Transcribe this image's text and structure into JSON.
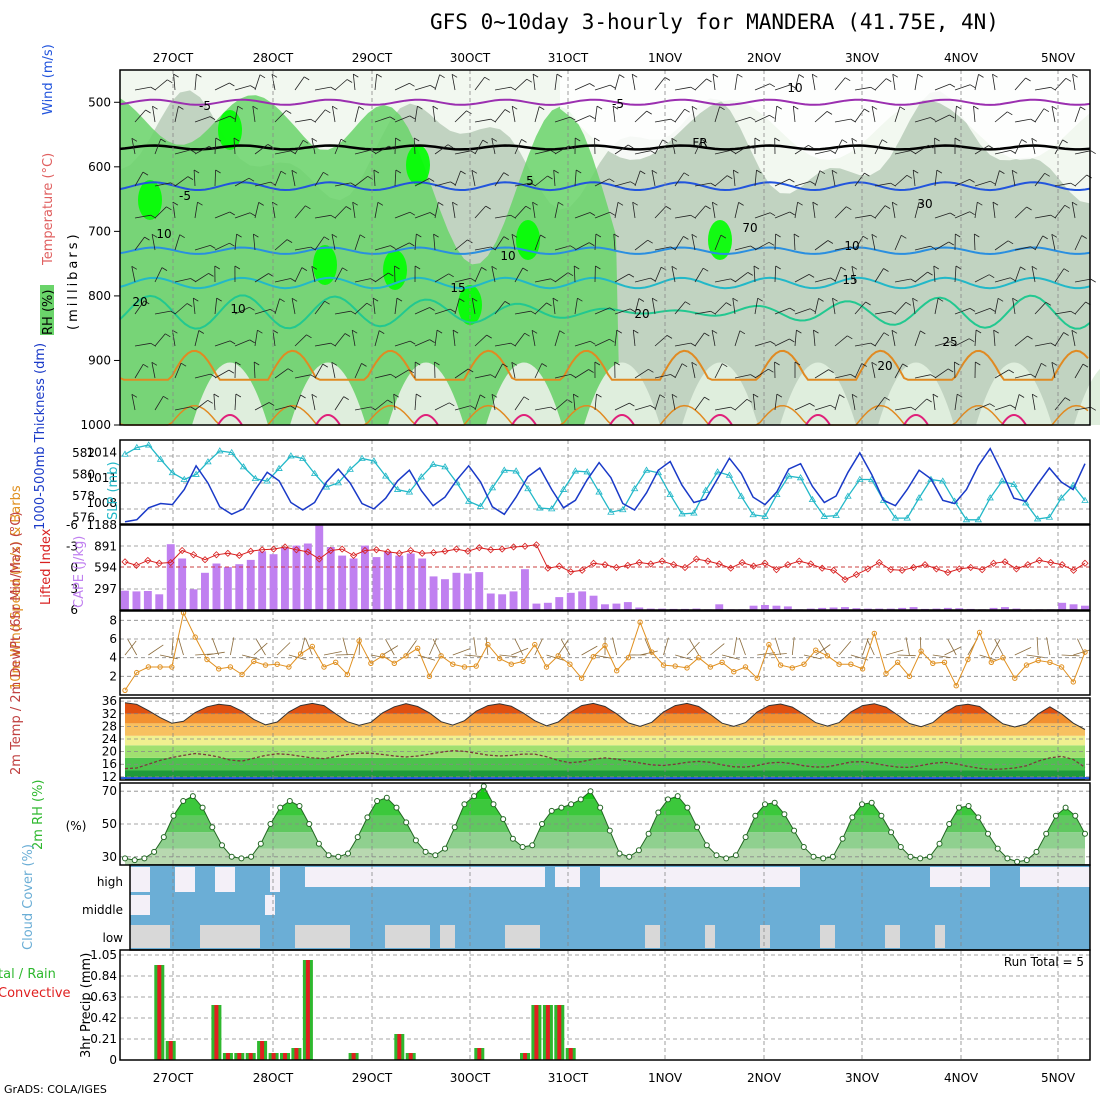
{
  "title": "GFS 0~10day 3-hourly for MANDERA (41.75E, 4N)",
  "credit": "GrADS: COLA/IGES",
  "colors": {
    "rh_light": "#dfeedd",
    "rh_mid": "#b8cdb8",
    "rh_green": "#6ad46a",
    "rh_bright": "#00ff00",
    "temp_purple": "#9b2fb0",
    "temp_blue": "#2255dd",
    "temp_lblue": "#2a8fe0",
    "temp_cyan": "#22b8c8",
    "temp_teal": "#22c890",
    "temp_orange": "#e08a22",
    "temp_magenta": "#e0207a",
    "slp": "#22b8c8",
    "thick": "#1a3ac8",
    "cape": "#c080f0",
    "li": "#d82020",
    "wind10": "#e09020",
    "barb": "#8a6a3a",
    "cloud": "#6baed6",
    "cloud_bg": "#f4f0f8",
    "precip_total": "#2eb82e",
    "precip_conv": "#e02020"
  },
  "chart_data": [
    {
      "panel": "upper_air",
      "type": "heatmap",
      "x_dates": [
        "27OCT",
        "28OCT",
        "29OCT",
        "30OCT",
        "31OCT",
        "1NOV",
        "2NOV",
        "3NOV",
        "4NOV",
        "5NOV"
      ],
      "ylabel_rh": "RH (%)",
      "ylabel_temp": "Temperature (°C)",
      "ylabel_wind": "Wind (m/s)",
      "ylabel_p": "(millibars)",
      "p_ticks": [
        500,
        600,
        700,
        800,
        900,
        1000
      ],
      "ylim": [
        450,
        1000
      ],
      "contour_labels": [
        "-5",
        "-5",
        "FR",
        "-5",
        "5",
        "10",
        "10",
        "15",
        "20",
        "20",
        "15",
        "10",
        "20",
        "25",
        "30",
        "10",
        "70",
        "10"
      ]
    },
    {
      "panel": "slp_thickness",
      "type": "line",
      "ylabel_left": "1000-500mb Thickness (dm)",
      "ylabel_right": "SLP (mb)",
      "left_ticks": [
        "576",
        "578",
        "580",
        "582"
      ],
      "right_ticks": [
        "1008",
        "1011",
        "1014"
      ],
      "left_lim": [
        575.4,
        583.2
      ],
      "right_lim": [
        1005.5,
        1015.5
      ],
      "series": [
        {
          "name": "SLP",
          "values": [
            1013.8,
            1014.6,
            1014.9,
            1013.2,
            1011.6,
            1010.8,
            1011.4,
            1012.9,
            1014.2,
            1014.0,
            1012.3,
            1010.9,
            1010.6,
            1012.1,
            1013.6,
            1013.3,
            1011.5,
            1009.9,
            1010.4,
            1012.0,
            1013.3,
            1013.0,
            1011.2,
            1009.6,
            1009.3,
            1011.1,
            1012.6,
            1012.3,
            1010.4,
            1008.2,
            1007.6,
            1009.8,
            1011.9,
            1011.8,
            1009.7,
            1007.4,
            1007.3,
            1009.6,
            1011.8,
            1011.7,
            1009.3,
            1006.9,
            1007.2,
            1009.7,
            1011.9,
            1011.6,
            1009.0,
            1006.7,
            1006.8,
            1009.5,
            1011.7,
            1011.3,
            1008.8,
            1006.6,
            1006.4,
            1009.0,
            1011.2,
            1011.0,
            1008.4,
            1006.4,
            1006.5,
            1008.8,
            1010.8,
            1010.8,
            1008.3,
            1006.2,
            1006.2,
            1008.6,
            1010.8,
            1010.6,
            1008.2,
            1006.0,
            1006.0,
            1008.6,
            1010.6,
            1010.2,
            1008.0,
            1006.1,
            1006.3,
            1008.6,
            1010.1,
            1008.3
          ]
        },
        {
          "name": "Thickness",
          "values": [
            575.6,
            575.8,
            576.9,
            577.3,
            577.2,
            578.6,
            580.8,
            579.2,
            577.0,
            576.3,
            576.8,
            578.6,
            580.2,
            579.4,
            577.4,
            576.7,
            577.4,
            579.3,
            580.5,
            579.2,
            577.3,
            576.8,
            577.8,
            579.4,
            580.4,
            578.5,
            577.1,
            577.9,
            579.5,
            580.8,
            579.3,
            577.0,
            576.3,
            577.9,
            579.8,
            580.6,
            578.6,
            576.9,
            577.6,
            579.5,
            581.1,
            579.7,
            577.3,
            576.7,
            578.3,
            580.4,
            581.2,
            579.0,
            577.4,
            577.7,
            579.6,
            581.5,
            580.1,
            577.9,
            577.2,
            578.4,
            580.5,
            581.0,
            578.9,
            577.4,
            578.0,
            580.2,
            582.0,
            580.0,
            577.6,
            577.1,
            578.6,
            580.4,
            579.6,
            577.6,
            577.3,
            578.6,
            580.8,
            582.4,
            580.2,
            577.8,
            577.5,
            579.1,
            580.6,
            579.3,
            578.6,
            581.0
          ]
        }
      ]
    },
    {
      "panel": "cape_li",
      "type": "bar",
      "ylabel_left": "Lifted Index",
      "ylabel_right": "CAPE (J/kg)",
      "left_ticks": [
        "-6",
        "-3",
        "0",
        "3",
        "6"
      ],
      "right_ticks": [
        "297",
        "594",
        "891",
        "1188"
      ],
      "cape_lim": [
        0,
        1188
      ],
      "li_lim": [
        6,
        -6
      ],
      "cape_values": [
        270,
        260,
        265,
        220,
        920,
        720,
        290,
        520,
        650,
        600,
        640,
        700,
        820,
        780,
        870,
        900,
        930,
        1180,
        880,
        760,
        720,
        900,
        740,
        810,
        760,
        790,
        720,
        470,
        430,
        520,
        510,
        530,
        230,
        220,
        260,
        570,
        90,
        100,
        180,
        240,
        260,
        200,
        80,
        90,
        110,
        35,
        20,
        20,
        15,
        15,
        20,
        10,
        80,
        10,
        10,
        60,
        70,
        60,
        50,
        10,
        20,
        30,
        35,
        40,
        25,
        20,
        20,
        20,
        30,
        40,
        15,
        20,
        30,
        25,
        15,
        10,
        30,
        40,
        20,
        10,
        10,
        10,
        100,
        80,
        60
      ],
      "li_values": [
        -0.8,
        -0.3,
        -1.0,
        -0.6,
        -0.7,
        -2.4,
        -1.8,
        -1.1,
        -1.8,
        -2.0,
        -1.7,
        -2.3,
        -2.5,
        -2.6,
        -2.9,
        -2.5,
        -2.2,
        -1.2,
        -2.4,
        -2.6,
        -1.7,
        -2.4,
        -2.5,
        -2.2,
        -2.0,
        -2.4,
        -2.0,
        -2.1,
        -2.3,
        -2.6,
        -2.3,
        -2.8,
        -2.5,
        -2.6,
        -2.9,
        -3.0,
        -3.2,
        0.1,
        -0.2,
        0.6,
        0.4,
        -0.6,
        -0.4,
        0.0,
        -0.3,
        -0.7,
        -0.5,
        -0.9,
        -0.4,
        0.0,
        -1.2,
        -0.9,
        -0.5,
        0.1,
        -0.7,
        -0.2,
        -0.6,
        0.3,
        -0.4,
        -0.9,
        -0.5,
        0.1,
        0.4,
        1.7,
        1.0,
        0.2,
        -0.7,
        0.3,
        0.4,
        0.0,
        -0.4,
        0.2,
        0.7,
        0.2,
        0.0,
        0.3,
        -0.6,
        -0.8,
        0.2,
        -0.4,
        -1.0,
        -0.7,
        -0.4,
        0.4,
        -0.6
      ]
    },
    {
      "panel": "wind10",
      "type": "line",
      "ylabel": "10m Wind Speed (m/s) & Barbs",
      "ticks": [
        "2",
        "4",
        "6",
        "8"
      ],
      "ylim": [
        0,
        9
      ],
      "values": [
        0.5,
        2.4,
        3.0,
        3.0,
        3.0,
        8.8,
        6.2,
        3.8,
        2.8,
        3.0,
        2.2,
        3.6,
        3.2,
        3.3,
        3.0,
        4.4,
        5.2,
        3.0,
        3.5,
        2.2,
        5.8,
        3.4,
        4.2,
        3.4,
        4.2,
        5.0,
        2.0,
        4.2,
        3.3,
        3.0,
        3.1,
        5.4,
        3.9,
        3.3,
        3.6,
        5.4,
        3.0,
        4.2,
        3.3,
        1.8,
        4.1,
        5.3,
        2.6,
        4.0,
        7.8,
        4.6,
        3.2,
        3.1,
        2.9,
        4.0,
        3.0,
        3.5,
        2.5,
        3.0,
        1.8,
        5.4,
        3.2,
        2.9,
        3.3,
        4.8,
        4.2,
        3.3,
        3.3,
        2.8,
        6.6,
        2.3,
        3.5,
        2.0,
        4.7,
        3.4,
        3.5,
        1.0,
        3.8,
        6.7,
        3.5,
        4.0,
        1.8,
        3.2,
        3.7,
        3.5,
        3.0,
        1.4,
        4.6
      ]
    },
    {
      "panel": "temp2m",
      "type": "area",
      "ylabel": "2m Temp / 2m DewPt (6hr Min/Max) (°C)",
      "ticks": [
        "12",
        "16",
        "20",
        "24",
        "28",
        "32",
        "36"
      ],
      "ylim": [
        11,
        37
      ],
      "temp_values": [
        35.5,
        35.0,
        33.0,
        30.8,
        29.0,
        29.6,
        32.4,
        34.2,
        35.0,
        34.6,
        32.8,
        30.2,
        28.5,
        29.4,
        32.6,
        34.6,
        35.3,
        34.6,
        32.0,
        29.5,
        28.3,
        29.3,
        32.3,
        34.2,
        35.2,
        34.3,
        32.3,
        29.5,
        28.4,
        29.8,
        32.8,
        34.6,
        35.2,
        34.4,
        32.3,
        29.8,
        28.2,
        29.4,
        32.4,
        34.6,
        35.3,
        34.3,
        32.0,
        29.1,
        28.0,
        29.3,
        32.6,
        34.6,
        35.3,
        34.3,
        31.8,
        29.0,
        28.0,
        29.2,
        32.6,
        34.6,
        35.1,
        34.1,
        31.8,
        29.2,
        28.1,
        29.2,
        32.6,
        34.6,
        35.2,
        34.1,
        31.6,
        28.9,
        27.9,
        29.2,
        32.3,
        34.5,
        35.0,
        34.3,
        31.5,
        28.8,
        27.8,
        28.8,
        32.0,
        34.2,
        32.0,
        29.0,
        27.0
      ],
      "dew_values": [
        14.6,
        14.8,
        16.0,
        17.2,
        18.1,
        18.8,
        19.4,
        19.0,
        18.3,
        17.3,
        17.0,
        17.9,
        18.8,
        19.3,
        19.1,
        18.5,
        18.0,
        17.8,
        18.4,
        19.1,
        19.5,
        19.5,
        19.1,
        18.6,
        18.3,
        18.6,
        19.2,
        19.8,
        20.3,
        20.1,
        19.5,
        18.9,
        18.6,
        18.8,
        19.2,
        19.2,
        18.4,
        17.2,
        16.5,
        16.8,
        17.6,
        18.0,
        17.6,
        17.0,
        16.4,
        15.8,
        15.6,
        16.0,
        16.6,
        16.9,
        16.6,
        15.8,
        15.2,
        15.1,
        15.6,
        16.4,
        16.6,
        16.2,
        15.5,
        15.1,
        15.2,
        15.9,
        16.7,
        16.8,
        16.3,
        15.6,
        15.1,
        15.0,
        15.6,
        16.3,
        16.6,
        16.1,
        15.3,
        14.7,
        14.4,
        14.5,
        14.8,
        15.5,
        17.0,
        18.0,
        18.5,
        17.5,
        15.0
      ]
    },
    {
      "panel": "rh2m",
      "type": "area",
      "ylabel": "2m RH (%)",
      "ticks": [
        "30",
        "50",
        "70"
      ],
      "ylim": [
        25,
        75
      ],
      "values": [
        29,
        28,
        29,
        33,
        42,
        55,
        64,
        67,
        60,
        48,
        37,
        30,
        29,
        30,
        38,
        50,
        60,
        64,
        61,
        50,
        38,
        31,
        30,
        32,
        42,
        54,
        64,
        66,
        60,
        51,
        40,
        33,
        31,
        35,
        48,
        62,
        67,
        73,
        62,
        53,
        41,
        36,
        37,
        50,
        58,
        60,
        62,
        65,
        70,
        60,
        46,
        32,
        30,
        34,
        44,
        57,
        65,
        67,
        60,
        48,
        37,
        31,
        29,
        31,
        42,
        55,
        62,
        63,
        56,
        46,
        36,
        30,
        29,
        30,
        41,
        54,
        62,
        63,
        55,
        45,
        36,
        30,
        29,
        30,
        38,
        50,
        60,
        61,
        54,
        44,
        35,
        29,
        27,
        28,
        33,
        44,
        55,
        60,
        55,
        44
      ]
    },
    {
      "panel": "cloud",
      "type": "heatmap",
      "ylabel": "Cloud Cover (%)",
      "levels": [
        "high",
        "middle",
        "low"
      ]
    },
    {
      "panel": "precip",
      "type": "bar",
      "ylabel": "3hr Precip (mm)",
      "ylabel_side": "Total / Rain Convective",
      "run_total_label": "Run Total = 5",
      "ticks": [
        "0",
        "0.21",
        "0.42",
        "0.63",
        "0.84",
        "1.05"
      ],
      "ylim": [
        0,
        1.05
      ],
      "values": [
        0,
        0,
        0,
        0.95,
        0.19,
        0,
        0,
        0,
        0.55,
        0.07,
        0.07,
        0.07,
        0.19,
        0.07,
        0.07,
        0.12,
        1.0,
        0,
        0,
        0,
        0.07,
        0,
        0,
        0,
        0.26,
        0.07,
        0,
        0,
        0,
        0,
        0,
        0.12,
        0,
        0,
        0,
        0.07,
        0.55,
        0.55,
        0.55,
        0.12,
        0,
        0,
        0,
        0,
        0,
        0,
        0,
        0,
        0,
        0,
        0,
        0,
        0,
        0,
        0,
        0,
        0,
        0,
        0,
        0,
        0,
        0,
        0,
        0,
        0,
        0,
        0,
        0,
        0,
        0,
        0,
        0,
        0,
        0,
        0,
        0,
        0,
        0,
        0,
        0,
        0,
        0,
        0,
        0,
        0
      ]
    }
  ]
}
